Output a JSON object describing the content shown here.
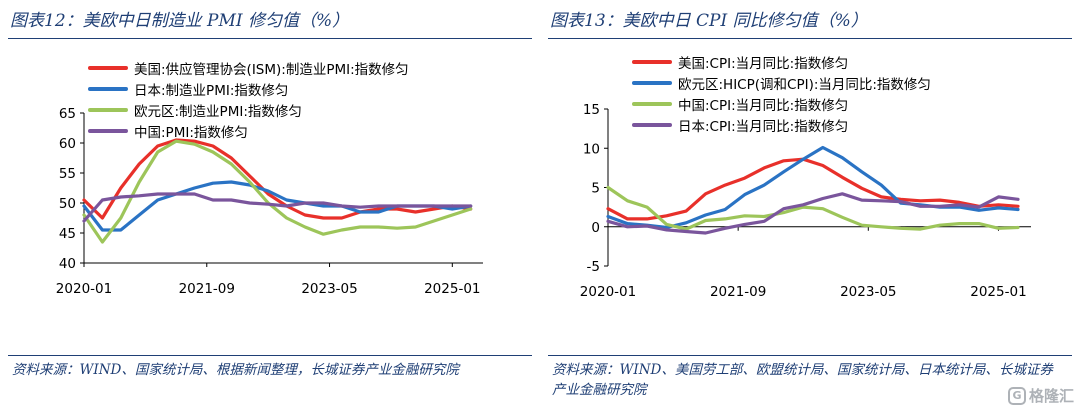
{
  "figures": [
    {
      "title": "图表12：美欧中日制造业 PMI 修匀值（%）",
      "source": "资料来源：WIND、国家统计局、根据新闻整理，长城证券产业金融研究院"
    },
    {
      "title": "图表13：美欧中日 CPI 同比修匀值（%）",
      "source": "资料来源：WIND、美国劳工部、欧盟统计局、国家统计局、日本统计局、长城证券产业金融研究院"
    }
  ],
  "watermark": {
    "text": "格隆汇",
    "icon": "G"
  },
  "chart_data": [
    {
      "type": "line",
      "x": [
        "2020-01",
        "2020-04",
        "2020-07",
        "2020-10",
        "2021-01",
        "2021-04",
        "2021-07",
        "2021-10",
        "2022-01",
        "2022-04",
        "2022-07",
        "2022-10",
        "2023-01",
        "2023-04",
        "2023-07",
        "2023-10",
        "2024-01",
        "2024-04",
        "2024-07",
        "2024-10",
        "2025-01",
        "2025-04"
      ],
      "x_ticks": [
        "2020-01",
        "2021-09",
        "2023-05",
        "2025-01"
      ],
      "y_ticks": [
        40,
        45,
        50,
        55,
        60,
        65
      ],
      "ylim": [
        40,
        65
      ],
      "legend_position": "top-left",
      "grid": false,
      "series": [
        {
          "name": "美国:供应管理协会(ISM):制造业PMI:指数修匀",
          "color": "#e8302a",
          "values": [
            50.5,
            47.5,
            52.5,
            56.5,
            59.5,
            60.5,
            60.3,
            59.5,
            57.5,
            54.5,
            51.5,
            49.5,
            48.0,
            47.5,
            47.5,
            48.5,
            49.0,
            49.0,
            48.5,
            49.0,
            49.5,
            49.0
          ]
        },
        {
          "name": "日本:制造业PMI:指数修匀",
          "color": "#2a73c4",
          "values": [
            49.5,
            45.5,
            45.5,
            48.0,
            50.5,
            51.5,
            52.5,
            53.3,
            53.5,
            53.0,
            52.0,
            50.5,
            50.0,
            49.5,
            49.5,
            48.5,
            48.5,
            49.5,
            49.5,
            49.5,
            49.0,
            49.5
          ]
        },
        {
          "name": "欧元区:制造业PMI:指数修匀",
          "color": "#9dc55a",
          "values": [
            48.0,
            43.5,
            47.5,
            53.5,
            58.5,
            60.3,
            59.8,
            58.5,
            56.5,
            53.5,
            50.0,
            47.5,
            46.0,
            44.8,
            45.5,
            46.0,
            46.0,
            45.8,
            46.0,
            47.0,
            48.0,
            49.0
          ]
        },
        {
          "name": "中国:PMI:指数修匀",
          "color": "#7a559c",
          "values": [
            47.0,
            50.5,
            51.0,
            51.2,
            51.5,
            51.5,
            51.5,
            50.5,
            50.5,
            50.0,
            49.8,
            49.5,
            50.0,
            50.0,
            49.5,
            49.3,
            49.5,
            49.5,
            49.5,
            49.5,
            49.5,
            49.5
          ]
        }
      ]
    },
    {
      "type": "line",
      "x": [
        "2020-01",
        "2020-04",
        "2020-07",
        "2020-10",
        "2021-01",
        "2021-04",
        "2021-07",
        "2021-10",
        "2022-01",
        "2022-04",
        "2022-07",
        "2022-10",
        "2023-01",
        "2023-04",
        "2023-07",
        "2023-10",
        "2024-01",
        "2024-04",
        "2024-07",
        "2024-10",
        "2025-01",
        "2025-04"
      ],
      "x_ticks": [
        "2020-01",
        "2021-09",
        "2023-05",
        "2025-01"
      ],
      "y_ticks": [
        -5,
        0,
        5,
        10,
        15
      ],
      "ylim": [
        -5,
        15
      ],
      "legend_position": "top-left",
      "grid": false,
      "series": [
        {
          "name": "美国:CPI:当月同比:指数修匀",
          "color": "#e8302a",
          "values": [
            2.3,
            1.0,
            1.0,
            1.4,
            2.0,
            4.2,
            5.3,
            6.2,
            7.5,
            8.4,
            8.6,
            7.8,
            6.3,
            4.9,
            3.8,
            3.5,
            3.3,
            3.4,
            3.1,
            2.6,
            2.8,
            2.6
          ]
        },
        {
          "name": "欧元区:HICP(调和CPI):当月同比:指数修匀",
          "color": "#2a73c4",
          "values": [
            1.3,
            0.4,
            0.2,
            -0.1,
            0.5,
            1.5,
            2.2,
            4.1,
            5.3,
            7.0,
            8.6,
            10.1,
            8.8,
            7.0,
            5.3,
            3.0,
            2.8,
            2.5,
            2.5,
            2.1,
            2.4,
            2.2
          ]
        },
        {
          "name": "中国:CPI:当月同比:指数修匀",
          "color": "#9dc55a",
          "values": [
            5.0,
            3.3,
            2.5,
            0.3,
            -0.3,
            0.8,
            1.0,
            1.4,
            1.3,
            1.8,
            2.5,
            2.3,
            1.2,
            0.2,
            0.0,
            -0.2,
            -0.3,
            0.2,
            0.4,
            0.4,
            -0.2,
            -0.1
          ]
        },
        {
          "name": "日本:CPI:当月同比:指数修匀",
          "color": "#7a559c",
          "values": [
            0.7,
            0.0,
            0.1,
            -0.4,
            -0.6,
            -0.8,
            -0.2,
            0.3,
            0.7,
            2.3,
            2.8,
            3.6,
            4.2,
            3.4,
            3.3,
            3.2,
            2.6,
            2.6,
            2.8,
            2.5,
            3.8,
            3.5
          ]
        }
      ]
    }
  ]
}
